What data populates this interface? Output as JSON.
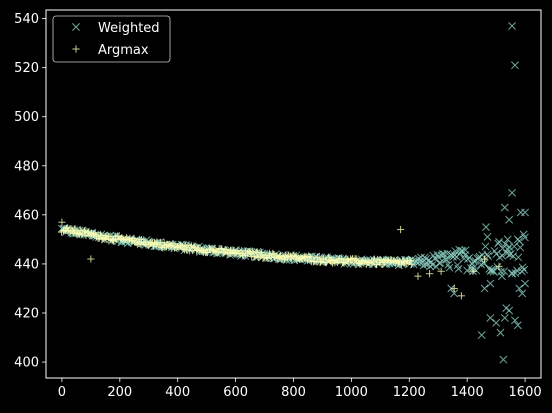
{
  "chart_data": {
    "type": "scatter",
    "title": "",
    "xlabel": "",
    "ylabel": "",
    "xlim": [
      -55,
      1655
    ],
    "ylim": [
      393.5,
      543.5
    ],
    "x_ticks": [
      0,
      200,
      400,
      600,
      800,
      1000,
      1200,
      1400,
      1600
    ],
    "y_ticks": [
      400,
      420,
      440,
      460,
      480,
      500,
      520,
      540
    ],
    "legend_position": "top-left",
    "background": "#000000",
    "series": [
      {
        "name": "Weighted",
        "marker": "x",
        "color": "#8dd3c7",
        "trend_points": [
          [
            0,
            454
          ],
          [
            200,
            450
          ],
          [
            400,
            447
          ],
          [
            600,
            444.5
          ],
          [
            800,
            442.5
          ],
          [
            1000,
            441
          ],
          [
            1200,
            440.5
          ],
          [
            1400,
            442
          ],
          [
            1600,
            444
          ]
        ],
        "dense_x_range": [
          0,
          1600
        ],
        "outliers": [
          [
            1555,
            537
          ],
          [
            1565,
            521
          ],
          [
            1555,
            469
          ],
          [
            1530,
            463
          ],
          [
            1545,
            458
          ],
          [
            1585,
            461
          ],
          [
            1600,
            461
          ],
          [
            1595,
            452
          ],
          [
            1575,
            450
          ],
          [
            1540,
            450
          ],
          [
            1510,
            449
          ],
          [
            1465,
            455
          ],
          [
            1470,
            451
          ],
          [
            1355,
            428
          ],
          [
            1345,
            430
          ],
          [
            1370,
            438
          ],
          [
            1420,
            437
          ],
          [
            1460,
            430
          ],
          [
            1480,
            432
          ],
          [
            1520,
            435
          ],
          [
            1555,
            436
          ],
          [
            1580,
            430
          ],
          [
            1600,
            432
          ],
          [
            1590,
            428
          ],
          [
            1535,
            422
          ],
          [
            1545,
            421
          ],
          [
            1565,
            417
          ],
          [
            1575,
            415
          ],
          [
            1480,
            418
          ],
          [
            1500,
            416
          ],
          [
            1530,
            418
          ],
          [
            1450,
            411
          ],
          [
            1515,
            412
          ],
          [
            1525,
            401
          ]
        ]
      },
      {
        "name": "Argmax",
        "marker": "+",
        "color": "#ffffb3",
        "trend_points": [
          [
            0,
            454
          ],
          [
            200,
            450
          ],
          [
            400,
            447
          ],
          [
            600,
            444.5
          ],
          [
            800,
            442.5
          ],
          [
            1000,
            441
          ],
          [
            1200,
            440.5
          ]
        ],
        "dense_x_range": [
          0,
          1210
        ],
        "outliers": [
          [
            0,
            457
          ],
          [
            100,
            442
          ],
          [
            1170,
            454
          ],
          [
            1230,
            435
          ],
          [
            1270,
            436
          ],
          [
            1310,
            437
          ],
          [
            1355,
            430
          ],
          [
            1380,
            427
          ],
          [
            1420,
            437
          ],
          [
            1460,
            442
          ],
          [
            1510,
            439
          ]
        ]
      }
    ]
  }
}
